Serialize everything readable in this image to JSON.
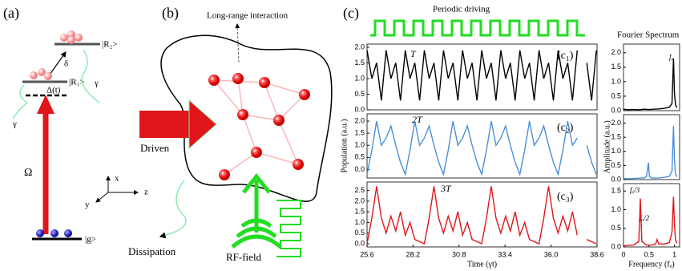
{
  "panel_a": {
    "label": "(a)",
    "r2": "|R₂>",
    "delta": "δ",
    "r1": "|R₁>",
    "detuning": "Δ(t)",
    "gamma_right": "γ",
    "gamma_left": "γ",
    "rabi": "Ω",
    "ground": "|g>",
    "axis_x": "x",
    "axis_y": "y",
    "axis_z": "z"
  },
  "panel_b": {
    "label": "(b)",
    "interaction": "Long-range interaction",
    "driven": "Driven",
    "dissipation": "Dissipation",
    "rf": "RF-field"
  },
  "panel_c": {
    "label": "(c)",
    "driving": "Periodic driving",
    "spectrum_title": "Fourier Spectrum"
  },
  "chart_data": [
    {
      "type": "line",
      "panel": "(c₁)",
      "annotation": "T",
      "color": "#000000",
      "x": [
        25.6,
        25.87,
        26.14,
        26.41,
        26.68,
        26.95,
        27.22,
        27.49,
        27.76,
        28.03,
        28.3,
        28.57,
        28.84,
        29.11,
        29.38,
        29.65,
        29.92,
        30.19,
        30.46,
        30.73,
        31.0,
        31.27,
        31.54,
        31.81,
        32.08,
        32.35,
        32.62,
        32.89,
        33.16,
        33.43,
        33.7,
        33.97,
        34.24,
        34.51,
        34.78,
        35.05,
        35.32,
        35.59,
        35.86,
        36.13,
        36.4,
        36.67,
        36.94,
        37.21,
        37.48,
        37.75,
        38.02,
        38.29,
        38.56
      ],
      "values": [
        1.9,
        1.0,
        1.5,
        0.3,
        1.9,
        1.0,
        1.5,
        0.3,
        1.9,
        1.0,
        1.5,
        0.3,
        1.9,
        1.0,
        1.5,
        0.3,
        1.9,
        1.0,
        1.5,
        0.3,
        1.9,
        1.0,
        1.5,
        0.3,
        1.9,
        1.0,
        1.5,
        0.3,
        1.9,
        1.0,
        1.5,
        0.3,
        1.9,
        1.0,
        1.5,
        0.3,
        1.9,
        1.0,
        1.5,
        0.3,
        1.9,
        1.0,
        1.5,
        0.3,
        1.9,
        null,
        1.5,
        0.3,
        1.9
      ],
      "xlim": [
        25.6,
        38.6
      ],
      "ylim": [
        0,
        2.1
      ],
      "yticks": [
        {
          "value": 0,
          "label": "0.0"
        },
        {
          "value": 0.5,
          "label": "0.5"
        },
        {
          "value": 1,
          "label": "1.0"
        },
        {
          "value": 1.5,
          "label": "1.5"
        },
        {
          "value": 2,
          "label": "2.0"
        }
      ]
    },
    {
      "type": "line",
      "panel": "(c₂)",
      "annotation": "2T",
      "color": "#4a8fd8",
      "ylabel": "Population (a.u.)",
      "x": [
        25.6,
        25.87,
        26.14,
        26.41,
        26.68,
        26.95,
        27.22,
        27.49,
        27.76,
        28.03,
        28.3,
        28.57,
        28.84,
        29.11,
        29.38,
        29.65,
        29.92,
        30.19,
        30.46,
        30.73,
        31.0,
        31.27,
        31.54,
        31.81,
        32.08,
        32.35,
        32.62,
        32.89,
        33.16,
        33.43,
        33.7,
        33.97,
        34.24,
        34.51,
        34.78,
        35.05,
        35.32,
        35.59,
        35.86,
        36.13,
        36.4,
        36.67,
        36.94,
        37.21,
        37.48,
        37.75,
        38.02,
        38.29,
        38.56
      ],
      "values": [
        -0.2,
        0.8,
        2.0,
        1.0,
        1.3,
        1.8,
        1.0,
        0.3,
        -0.2,
        0.8,
        2.0,
        1.0,
        1.3,
        1.8,
        1.0,
        0.3,
        -0.2,
        0.8,
        2.0,
        1.0,
        1.3,
        1.8,
        1.0,
        0.3,
        -0.2,
        0.8,
        2.0,
        1.0,
        1.3,
        1.8,
        1.0,
        0.3,
        -0.2,
        0.8,
        2.0,
        1.0,
        1.3,
        1.8,
        1.0,
        0.3,
        -0.2,
        0.8,
        2.0,
        1.0,
        1.3,
        null,
        1.0,
        0.3,
        -0.2
      ],
      "xlim": [
        25.6,
        38.6
      ],
      "ylim": [
        -0.35,
        2.3
      ],
      "yticks": [
        {
          "value": 0,
          "label": "0.0"
        },
        {
          "value": 0.5,
          "label": "0.5"
        },
        {
          "value": 1,
          "label": "1.0"
        },
        {
          "value": 1.5,
          "label": "1.5"
        },
        {
          "value": 2,
          "label": "2.0"
        }
      ]
    },
    {
      "type": "line",
      "panel": "(c₃)",
      "annotation": "3T",
      "color": "#e0161b",
      "xlabel": "Time (γt)",
      "x": [
        25.6,
        25.87,
        26.14,
        26.41,
        26.68,
        26.95,
        27.22,
        27.49,
        27.76,
        28.03,
        28.3,
        28.57,
        28.84,
        29.11,
        29.38,
        29.65,
        29.92,
        30.19,
        30.46,
        30.73,
        31.0,
        31.27,
        31.54,
        31.81,
        32.08,
        32.35,
        32.62,
        32.89,
        33.16,
        33.43,
        33.7,
        33.97,
        34.24,
        34.51,
        34.78,
        35.05,
        35.32,
        35.59,
        35.86,
        36.13,
        36.4,
        36.67,
        36.94,
        37.21,
        37.48,
        37.75,
        38.02,
        38.29,
        38.56
      ],
      "values": [
        0.0,
        1.2,
        2.7,
        1.2,
        0.5,
        1.3,
        0.6,
        1.5,
        0.4,
        1.0,
        0.2,
        0.1,
        0.0,
        1.2,
        2.7,
        1.2,
        0.5,
        1.3,
        0.6,
        1.5,
        0.4,
        1.0,
        0.2,
        0.1,
        0.0,
        1.2,
        2.7,
        1.2,
        0.5,
        1.3,
        0.6,
        1.5,
        0.4,
        1.0,
        0.2,
        0.1,
        0.0,
        1.2,
        2.7,
        1.2,
        0.5,
        1.3,
        0.6,
        1.5,
        0.4,
        null,
        0.2,
        0.1,
        0.0
      ],
      "xlim": [
        25.6,
        38.6
      ],
      "ylim": [
        -0.15,
        2.9
      ],
      "xticks": [
        25.6,
        28.2,
        30.8,
        33.4,
        {
          "value": 36,
          "label": "36.0"
        },
        38.6
      ],
      "yticks": [
        {
          "value": 0,
          "label": "0.0"
        },
        {
          "value": 0.5,
          "label": "0.5"
        },
        {
          "value": 1,
          "label": "1.0"
        },
        {
          "value": 1.5,
          "label": "1.5"
        },
        {
          "value": 2,
          "label": "2.0"
        },
        {
          "value": 2.5,
          "label": "2.5"
        }
      ]
    },
    {
      "type": "line",
      "annotation": "fₐ",
      "color": "#000000",
      "x": [
        0,
        0.1,
        0.2,
        0.3,
        0.4,
        0.5,
        0.6,
        0.7,
        0.8,
        0.9,
        0.95,
        0.98,
        1.0,
        1.02,
        1.05
      ],
      "values": [
        0.05,
        0.03,
        0.04,
        0.03,
        0.05,
        0.04,
        0.05,
        0.06,
        0.08,
        0.12,
        0.25,
        1.8,
        0.6,
        0.2,
        0.1
      ],
      "xlim": [
        0,
        1.1
      ],
      "ylim": [
        0,
        2.3
      ],
      "yticks": [
        {
          "value": 0,
          "label": "0.0"
        },
        {
          "value": 0.5,
          "label": "0.5"
        },
        {
          "value": 1,
          "label": "1.0"
        },
        {
          "value": 1.5,
          "label": "1.5"
        },
        {
          "value": 2,
          "label": "2.0"
        }
      ]
    },
    {
      "type": "line",
      "annotation": "fₐ/2",
      "color": "#4a8fd8",
      "ylabel": "Amplitude (a.u.)",
      "x": [
        0,
        0.1,
        0.2,
        0.3,
        0.4,
        0.45,
        0.49,
        0.5,
        0.51,
        0.55,
        0.6,
        0.7,
        0.8,
        0.9,
        0.95,
        0.98,
        1.0,
        1.02,
        1.05
      ],
      "values": [
        0.04,
        0.03,
        0.04,
        0.05,
        0.06,
        0.1,
        0.6,
        0.3,
        0.1,
        0.06,
        0.05,
        0.06,
        0.08,
        0.12,
        0.3,
        1.9,
        0.7,
        0.2,
        0.1
      ],
      "xlim": [
        0,
        1.1
      ],
      "ylim": [
        0,
        2.3
      ],
      "yticks": [
        {
          "value": 0,
          "label": "0.0"
        },
        {
          "value": 0.5,
          "label": "0.5"
        },
        {
          "value": 1,
          "label": "1.0"
        },
        {
          "value": 1.5,
          "label": "1.5"
        },
        {
          "value": 2,
          "label": "2.0"
        }
      ]
    },
    {
      "type": "line",
      "annotation": "fₐ/3",
      "color": "#e0161b",
      "xlabel": "Frequency (fₐ)",
      "x": [
        0,
        0.1,
        0.2,
        0.3,
        0.33,
        0.36,
        0.45,
        0.55,
        0.63,
        0.66,
        0.69,
        0.8,
        0.9,
        0.95,
        0.98,
        1.0,
        1.02,
        1.05
      ],
      "values": [
        0.03,
        0.04,
        0.05,
        0.15,
        1.3,
        0.15,
        0.05,
        0.05,
        0.08,
        0.2,
        0.08,
        0.08,
        0.12,
        0.4,
        1.35,
        0.6,
        0.2,
        0.1
      ],
      "xlim": [
        0,
        1.1
      ],
      "ylim": [
        0,
        1.7
      ],
      "xticks": [
        0,
        0.5,
        1
      ],
      "yticks": [
        {
          "value": 0,
          "label": "0.0"
        },
        {
          "value": 0.5,
          "label": "0.5"
        },
        {
          "value": 1,
          "label": "1.0"
        },
        {
          "value": 1.5,
          "label": "1.5"
        }
      ]
    }
  ]
}
